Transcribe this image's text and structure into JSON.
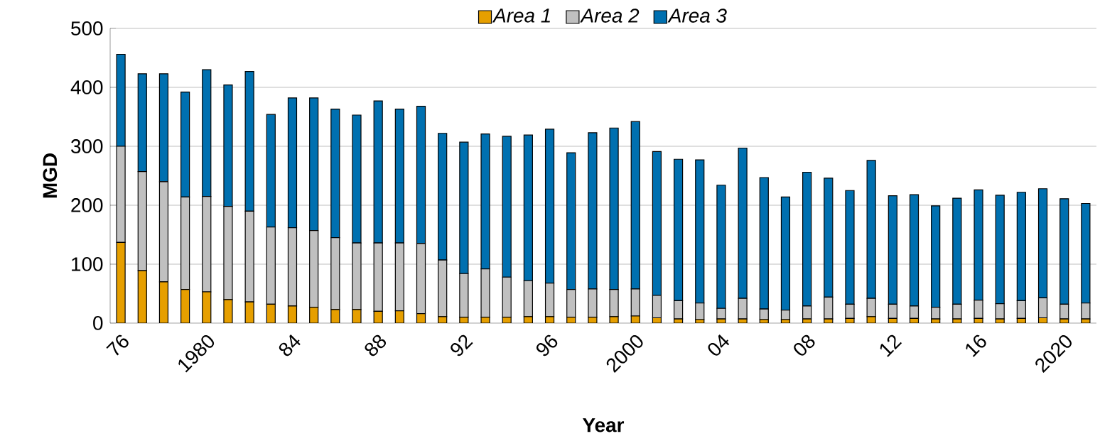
{
  "chart_data": {
    "type": "bar",
    "stacked": true,
    "xlabel": "Year",
    "ylabel": "MGD",
    "categories": [
      "76",
      null,
      null,
      null,
      "1980",
      null,
      null,
      null,
      "84",
      null,
      null,
      null,
      "88",
      null,
      null,
      null,
      "92",
      null,
      null,
      null,
      "96",
      null,
      null,
      null,
      "2000",
      null,
      null,
      null,
      "04",
      null,
      null,
      null,
      "08",
      null,
      null,
      null,
      "12",
      null,
      null,
      null,
      "16",
      null,
      null,
      null,
      "2020",
      null
    ],
    "series": [
      {
        "name": "Area 1",
        "color": "#e69f00",
        "values": [
          137,
          89,
          70,
          57,
          53,
          40,
          36,
          32,
          29,
          27,
          23,
          23,
          20,
          21,
          16,
          11,
          10,
          10,
          10,
          11,
          11,
          10,
          10,
          11,
          12,
          9,
          7,
          6,
          7,
          7,
          6,
          6,
          7,
          7,
          8,
          11,
          8,
          8,
          7,
          7,
          8,
          7,
          8,
          9,
          7,
          7
        ]
      },
      {
        "name": "Area 2",
        "color": "#c0c0c0",
        "values": [
          163,
          168,
          170,
          157,
          162,
          158,
          154,
          131,
          133,
          130,
          122,
          113,
          116,
          115,
          119,
          96,
          74,
          82,
          68,
          61,
          57,
          47,
          48,
          46,
          46,
          38,
          31,
          28,
          18,
          35,
          18,
          16,
          22,
          37,
          24,
          31,
          24,
          21,
          20,
          25,
          31,
          26,
          30,
          34,
          25,
          27
        ]
      },
      {
        "name": "Area 3",
        "color": "#0070b0",
        "values": [
          156,
          166,
          183,
          178,
          215,
          206,
          237,
          191,
          220,
          225,
          218,
          217,
          241,
          227,
          233,
          215,
          223,
          229,
          239,
          247,
          261,
          232,
          265,
          274,
          284,
          244,
          240,
          243,
          209,
          255,
          223,
          192,
          227,
          202,
          193,
          234,
          184,
          189,
          172,
          180,
          187,
          184,
          184,
          185,
          179,
          169
        ]
      }
    ],
    "ylim": [
      0,
      500
    ],
    "yticks": [
      0,
      100,
      200,
      300,
      400,
      500
    ],
    "grid": "y",
    "legend": "top"
  }
}
